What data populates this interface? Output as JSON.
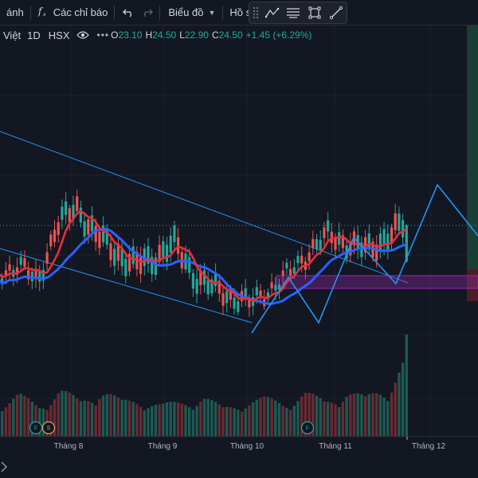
{
  "toolbar": {
    "indicators_partial": "ánh",
    "fx_icon": "f(x)",
    "formula_label": "Các chỉ báo",
    "chart_type_label": "Biểu đồ",
    "profile_label": "Hồ sơ"
  },
  "legend": {
    "symbol_partial": "Việt",
    "interval": "1D",
    "exchange": "HSX",
    "more": "•••",
    "open_key": "O",
    "open": "23.10",
    "high_key": "H",
    "high": "24.50",
    "low_key": "L",
    "low": "22.90",
    "close_key": "C",
    "close": "24.50",
    "change": "+1.45 (+6.29%)"
  },
  "x_axis": {
    "labels": [
      "Tháng 8",
      "Tháng 9",
      "Tháng 10",
      "Tháng 11",
      "Tháng 12"
    ]
  },
  "markers": [
    "F",
    "S",
    "F"
  ],
  "colors": {
    "up": "#26a69a",
    "down": "#ef5350",
    "ma_fast": "#e52e3f",
    "ma_slow": "#2962ff",
    "drawing": "#2196f3",
    "zone": "#9c27b0"
  },
  "chart_data": {
    "type": "candlestick",
    "x_labels": [
      "Tháng 8",
      "Tháng 9",
      "Tháng 10",
      "Tháng 11",
      "Tháng 12"
    ],
    "last": {
      "open": 23.1,
      "high": 24.5,
      "low": 22.9,
      "close": 24.5,
      "change": 1.45,
      "change_pct": 6.29
    },
    "approx_price_range": [
      20.5,
      25.5
    ],
    "trend_pattern": [
      0.3,
      0.35,
      0.25,
      0.6,
      0.75,
      0.55,
      0.45,
      0.35,
      0.4,
      0.5,
      0.3,
      0.2,
      0.15,
      0.1,
      0.2,
      0.3,
      0.45,
      0.55,
      0.5,
      0.45,
      0.55,
      0.62
    ],
    "volume_pattern": [
      0.2,
      0.4,
      0.25,
      0.5,
      0.3,
      0.55,
      0.3,
      0.35,
      0.25,
      0.3,
      0.4,
      0.2,
      0.3,
      0.35,
      0.3,
      0.45,
      0.3,
      0.5,
      0.35,
      0.6,
      1.0
    ]
  }
}
